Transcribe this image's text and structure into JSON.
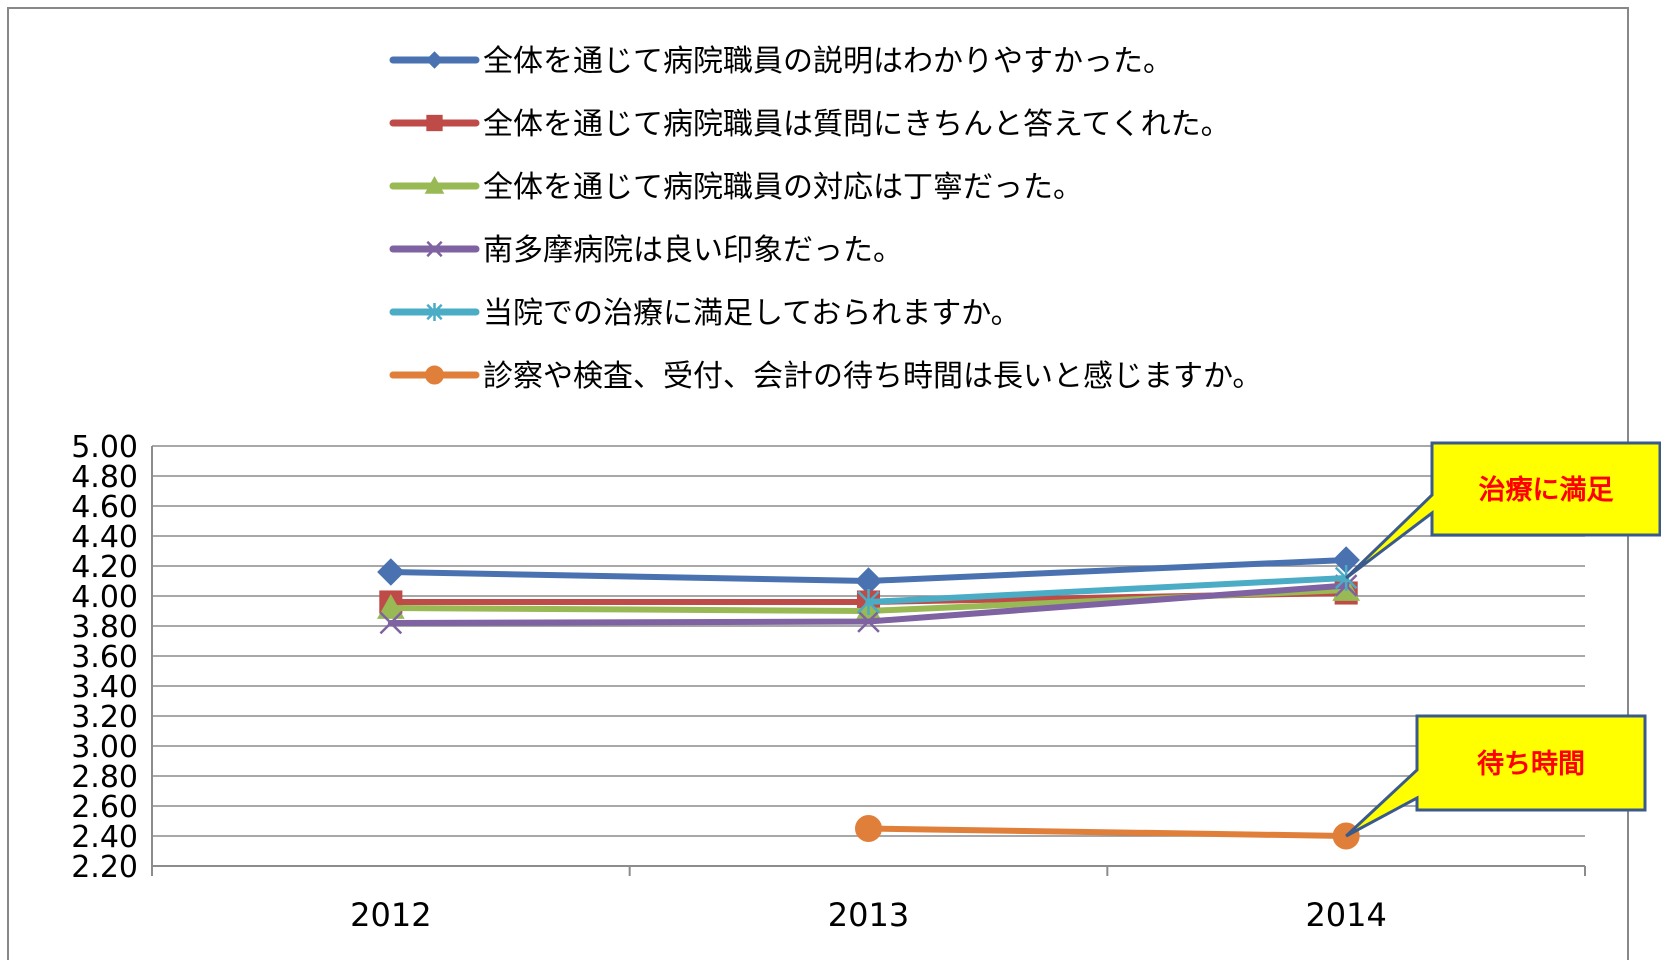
{
  "chart_data": {
    "type": "line",
    "categories": [
      "2012",
      "2013",
      "2014"
    ],
    "ylim": [
      2.2,
      5.0
    ],
    "ytick_labels": [
      "5.00",
      "4.80",
      "4.60",
      "4.40",
      "4.20",
      "4.00",
      "3.80",
      "3.60",
      "3.40",
      "3.20",
      "3.00",
      "2.80",
      "2.60",
      "2.40",
      "2.20"
    ],
    "ytick_values": [
      5.0,
      4.8,
      4.6,
      4.4,
      4.2,
      4.0,
      3.8,
      3.6,
      3.4,
      3.2,
      3.0,
      2.8,
      2.6,
      2.4,
      2.2
    ],
    "grid": true,
    "legend_position": "top",
    "series": [
      {
        "name": "全体を通じて病院職員の説明はわかりやすかった。",
        "values": [
          4.16,
          4.1,
          4.24
        ],
        "color": "#4a72b0",
        "marker": "diamond"
      },
      {
        "name": "全体を通じて病院職員は質問にきちんと答えてくれた。",
        "values": [
          3.96,
          3.96,
          4.02
        ],
        "color": "#be4b48",
        "marker": "square"
      },
      {
        "name": "全体を通じて病院職員の対応は丁寧だった。",
        "values": [
          3.92,
          3.9,
          4.04
        ],
        "color": "#98b954",
        "marker": "triangle"
      },
      {
        "name": "南多摩病院は良い印象だった。",
        "values": [
          3.82,
          3.83,
          4.07
        ],
        "color": "#7e62a1",
        "marker": "x"
      },
      {
        "name": "当院での治療に満足しておられますか。",
        "values": [
          null,
          3.96,
          4.12
        ],
        "color": "#4aacc5",
        "marker": "star"
      },
      {
        "name": "診察や検査、受付、会計の待ち時間は長いと感じますか。",
        "values": [
          null,
          2.45,
          2.4
        ],
        "color": "#e07f3a",
        "marker": "circle"
      }
    ],
    "annotations": [
      {
        "text": "治療に満足",
        "target_series": 4,
        "target_index": 2,
        "fill": "#ffff00",
        "text_color": "#ff0000"
      },
      {
        "text": "待ち時間",
        "target_series": 5,
        "target_index": 2,
        "fill": "#ffff00",
        "text_color": "#ff0000"
      }
    ]
  }
}
